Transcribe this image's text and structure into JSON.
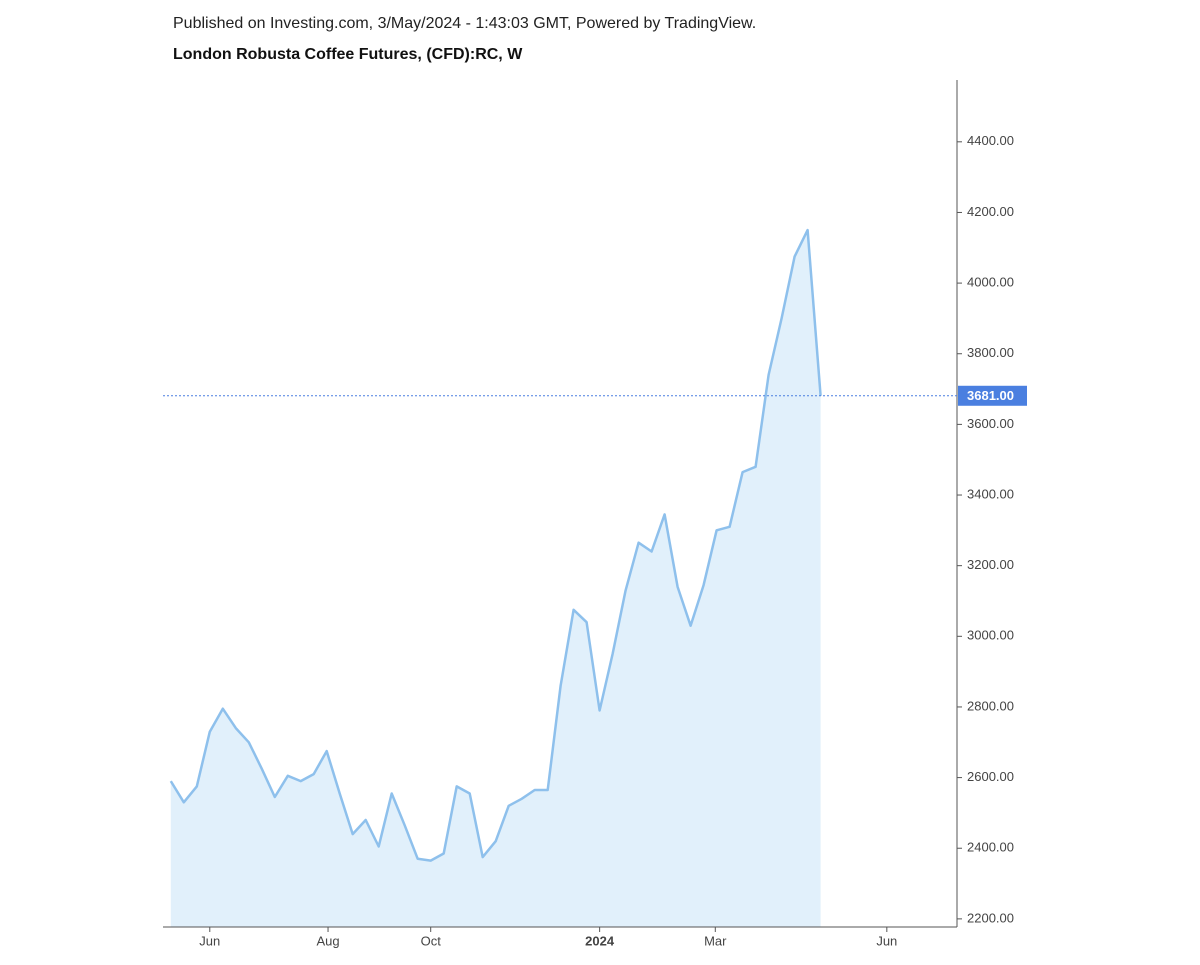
{
  "chart_data": {
    "type": "area",
    "subtitle": "Published on Investing.com, 3/May/2024 - 1:43:03 GMT, Powered by TradingView.",
    "title": "London Robusta Coffee Futures, (CFD):RC, W",
    "watermark": {
      "brand": "Investing",
      "suffix": ".com"
    },
    "categories": [
      null,
      null,
      null,
      null,
      null,
      null,
      null,
      null,
      null,
      null,
      null,
      null,
      null,
      null,
      null,
      null,
      null,
      null,
      null,
      null,
      null,
      null,
      null,
      null,
      null,
      null,
      null,
      null,
      null,
      null,
      null,
      null,
      null,
      null,
      null,
      null,
      null,
      null,
      null,
      null,
      null,
      null,
      null,
      null,
      null,
      null,
      null,
      null,
      null,
      null,
      null
    ],
    "values": [
      2590,
      2530,
      2575,
      2730,
      2795,
      2740,
      2700,
      2625,
      2545,
      2605,
      2590,
      2610,
      2675,
      2555,
      2440,
      2480,
      2405,
      2555,
      2465,
      2370,
      2365,
      2385,
      2575,
      2555,
      2375,
      2420,
      2520,
      2540,
      2565,
      2565,
      2860,
      3075,
      3040,
      2790,
      2950,
      3130,
      3265,
      3240,
      3345,
      3140,
      3030,
      3145,
      3300,
      3310,
      3465,
      3480,
      3740,
      3900,
      4075,
      4150,
      3681
    ],
    "color": "#8ec0ec",
    "fill": "#e1f0fb",
    "last_price": {
      "value": 3681,
      "label": "3681.00"
    },
    "last_price_color": "#4a7fe0",
    "xlim": [
      -0.6,
      60.5
    ],
    "xticks": [
      {
        "value": 3,
        "label": "Jun"
      },
      {
        "value": 12.1,
        "label": "Aug"
      },
      {
        "value": 20,
        "label": "Oct"
      },
      {
        "value": 33,
        "label": "2024"
      },
      {
        "value": 41.9,
        "label": "Mar"
      },
      {
        "value": 55.1,
        "label": "Jun"
      }
    ],
    "ylim": [
      2177,
      4575
    ],
    "yticks": [
      {
        "value": 2200,
        "label": "2200.00"
      },
      {
        "value": 2400,
        "label": "2400.00"
      },
      {
        "value": 2600,
        "label": "2600.00"
      },
      {
        "value": 2800,
        "label": "2800.00"
      },
      {
        "value": 3000,
        "label": "3000.00"
      },
      {
        "value": 3200,
        "label": "3200.00"
      },
      {
        "value": 3400,
        "label": "3400.00"
      },
      {
        "value": 3600,
        "label": "3600.00"
      },
      {
        "value": 3800,
        "label": "3800.00"
      },
      {
        "value": 4000,
        "label": "4000.00"
      },
      {
        "value": 4200,
        "label": "4200.00"
      },
      {
        "value": 4400,
        "label": "4400.00"
      }
    ],
    "grid": false
  }
}
